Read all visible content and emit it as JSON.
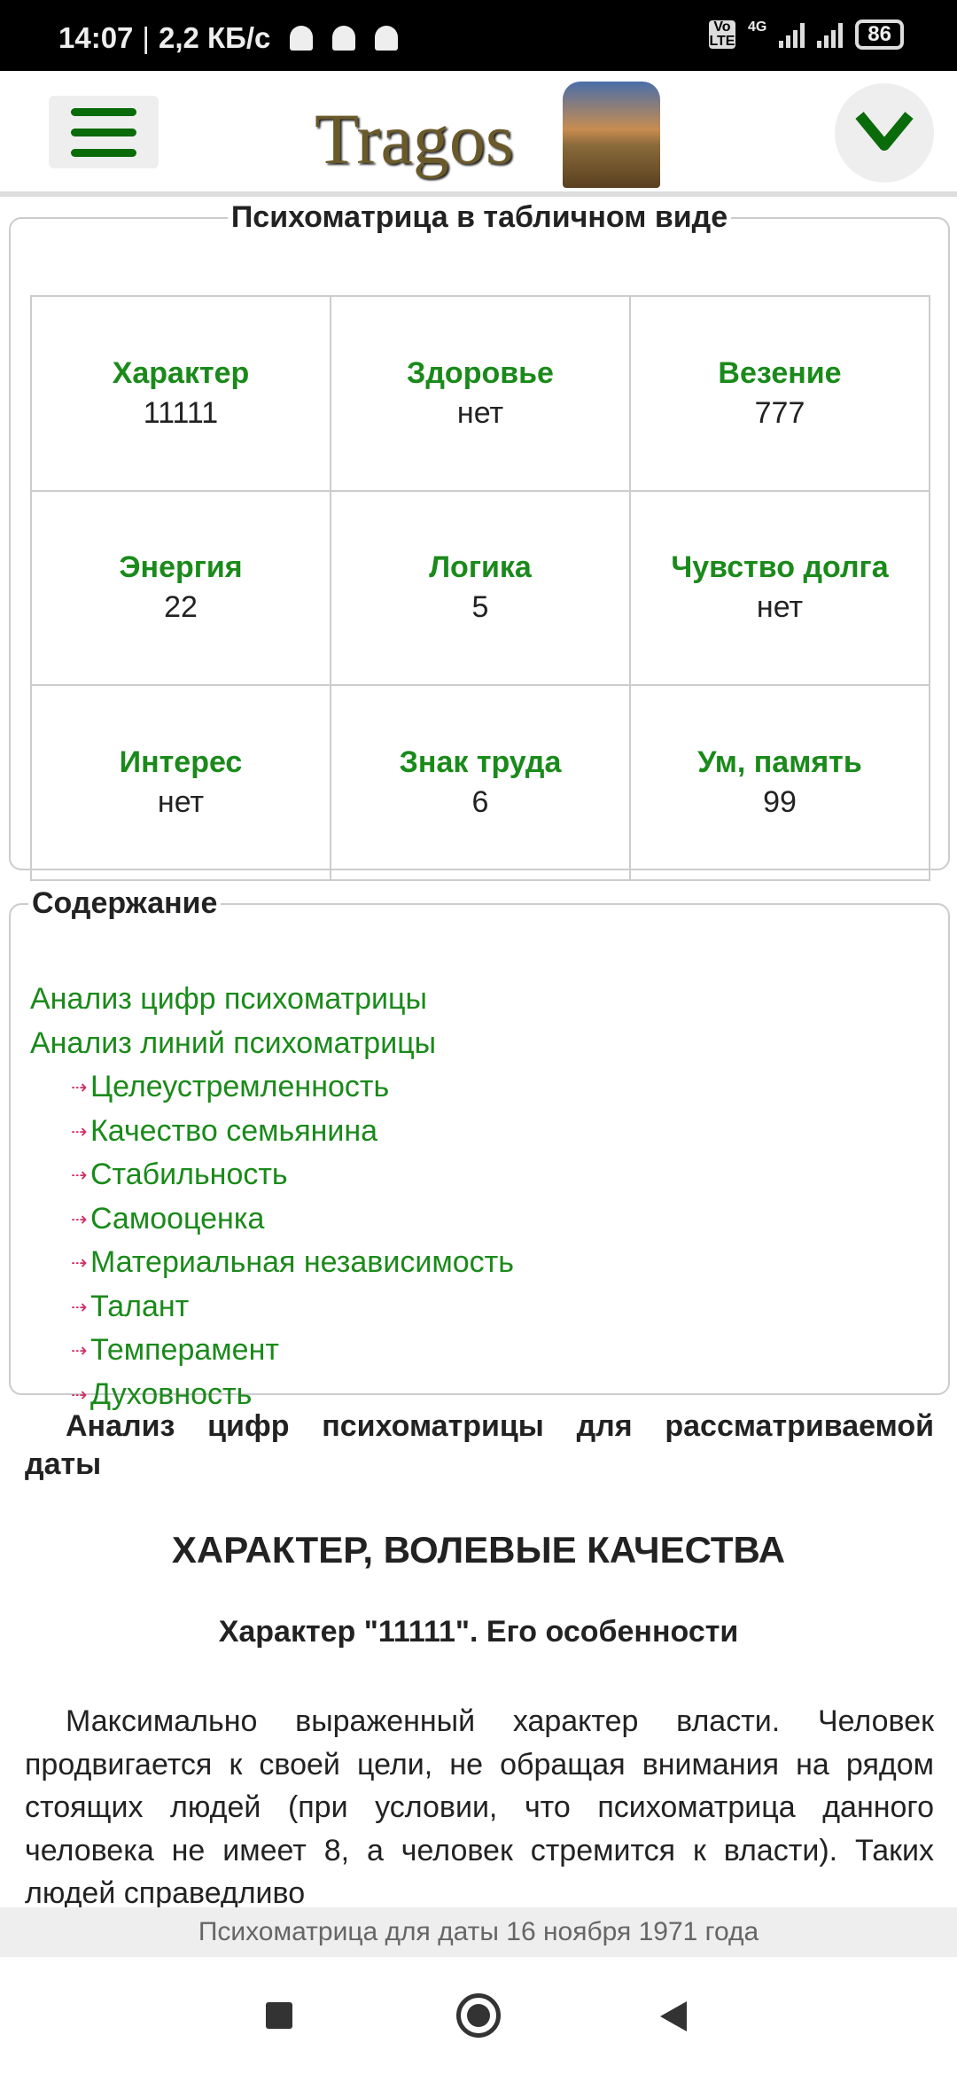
{
  "status_bar": {
    "time": "14:07",
    "speed": "2,2 КБ/с",
    "volte": "Vo LTE",
    "network": "4G",
    "battery": "86"
  },
  "header": {
    "logo_text": "Tragos"
  },
  "matrix": {
    "title": "Психоматрица в табличном виде",
    "cells": [
      {
        "label": "Характер",
        "value": "11111"
      },
      {
        "label": "Здоровье",
        "value": "нет"
      },
      {
        "label": "Везение",
        "value": "777"
      },
      {
        "label": "Энергия",
        "value": "22"
      },
      {
        "label": "Логика",
        "value": "5"
      },
      {
        "label": "Чувство долга",
        "value": "нет"
      },
      {
        "label": "Интерес",
        "value": "нет"
      },
      {
        "label": "Знак труда",
        "value": "6"
      },
      {
        "label": "Ум, память",
        "value": "99"
      }
    ]
  },
  "toc": {
    "title": "Содержание",
    "items": [
      "Анализ цифр психоматрицы",
      "Анализ линий психоматрицы"
    ],
    "subitems": [
      "Целеустремленность",
      "Качество семьянина",
      "Стабильность",
      "Самооценка",
      "Материальная независимость",
      "Талант",
      "Темперамент",
      "Духовность"
    ],
    "arrow_color": "#d0306a"
  },
  "article": {
    "intro_line1": "Анализ цифр психоматрицы для рассматриваемой",
    "intro_line2": "даты",
    "heading": "ХАРАКТЕР, ВОЛЕВЫЕ КАЧЕСТВА",
    "subheading": "Характер \"11111\". Его особенности",
    "body": "Максимально выраженный характер власти. Человек продвигается к своей цели, не обращая внимания на рядом стоящих людей (при условии, что психоматрица данного человека не имеет 8, а человек стремится к власти). Таких людей справедливо"
  },
  "footer": {
    "text": "Психоматрица для даты 16 ноября 1971 года"
  },
  "colors": {
    "accent": "#1a8a1a",
    "menu": "#0a6b0a"
  }
}
